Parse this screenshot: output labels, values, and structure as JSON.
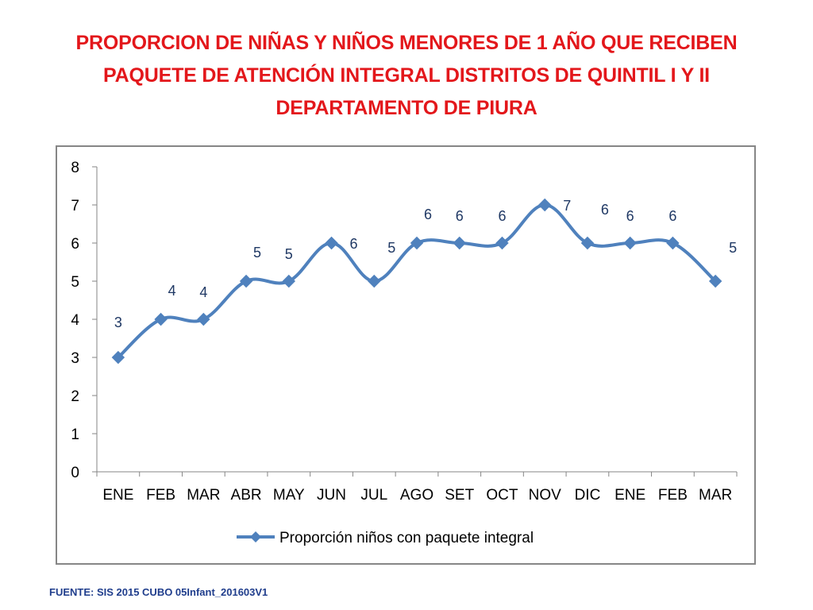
{
  "slide": {
    "title": "PROPORCION DE NIÑAS Y NIÑOS MENORES DE 1 AÑO QUE RECIBEN PAQUETE DE ATENCIÓN INTEGRAL  DISTRITOS DE QUINTIL I Y II DEPARTAMENTO DE PIURA",
    "source": "FUENTE: SIS 2015 CUBO 05Infant_201603V1"
  },
  "chart_data": {
    "type": "line",
    "title": "",
    "xlabel": "",
    "ylabel": "",
    "categories": [
      "ENE",
      "FEB",
      "MAR",
      "ABR",
      "MAY",
      "JUN",
      "JUL",
      "AGO",
      "SET",
      "OCT",
      "NOV",
      "DIC",
      "ENE",
      "FEB",
      "MAR"
    ],
    "series": [
      {
        "name": "Proporción niños con paquete integral",
        "values": [
          3,
          4,
          4,
          5,
          5,
          6,
          5,
          6,
          6,
          6,
          7,
          6,
          6,
          6,
          5
        ],
        "color": "#4f81bd",
        "marker": "diamond",
        "smooth": true
      }
    ],
    "ylim": [
      0,
      8
    ],
    "yticks": [
      0,
      1,
      2,
      3,
      4,
      5,
      6,
      7,
      8
    ],
    "grid": false,
    "legend_position": "bottom",
    "data_label_color": "#1f3864"
  }
}
